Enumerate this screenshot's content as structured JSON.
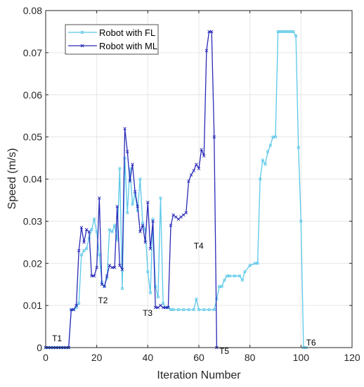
{
  "chart_data": {
    "type": "line",
    "xlabel": "Iteration Number",
    "ylabel": "Speed (m/s)",
    "xlim": [
      0,
      120
    ],
    "ylim": [
      0,
      0.08
    ],
    "xticks": [
      "0",
      "20",
      "40",
      "60",
      "80",
      "100",
      "120"
    ],
    "yticks": [
      "0",
      "0.01",
      "0.02",
      "0.03",
      "0.04",
      "0.05",
      "0.06",
      "0.07",
      "0.08"
    ],
    "grid": true,
    "legend_position": "top-left",
    "annotations": [
      {
        "text": "T1",
        "x": 2.5,
        "y": 0.0015
      },
      {
        "text": "T2",
        "x": 20.5,
        "y": 0.0105
      },
      {
        "text": "T3",
        "x": 38,
        "y": 0.0075
      },
      {
        "text": "T4",
        "x": 58,
        "y": 0.0235
      },
      {
        "text": "T5",
        "x": 68,
        "y": -0.0015
      },
      {
        "text": "T6",
        "x": 102,
        "y": 0.0005
      }
    ],
    "series": [
      {
        "name": "Robot with FL",
        "color": "#5bc8e8",
        "marker": "square",
        "points": [
          [
            0,
            0
          ],
          [
            1,
            0
          ],
          [
            2,
            0
          ],
          [
            3,
            0
          ],
          [
            4,
            0
          ],
          [
            5,
            0
          ],
          [
            6,
            0
          ],
          [
            7,
            0
          ],
          [
            8,
            0
          ],
          [
            9,
            0
          ],
          [
            10,
            0.009
          ],
          [
            11,
            0.009
          ],
          [
            12,
            0.0095
          ],
          [
            13,
            0.0105
          ],
          [
            14,
            0.022
          ],
          [
            15,
            0.023
          ],
          [
            16,
            0.0235
          ],
          [
            17,
            0.026
          ],
          [
            18,
            0.028
          ],
          [
            19,
            0.0305
          ],
          [
            20,
            0.0275
          ],
          [
            21,
            0.022
          ],
          [
            22,
            0.0155
          ],
          [
            23,
            0.0145
          ],
          [
            24,
            0.0165
          ],
          [
            25,
            0.028
          ],
          [
            26,
            0.0275
          ],
          [
            27,
            0.029
          ],
          [
            28,
            0.0255
          ],
          [
            29,
            0.0425
          ],
          [
            30,
            0.014
          ],
          [
            31,
            0.045
          ],
          [
            32,
            0.032
          ],
          [
            33,
            0.0425
          ],
          [
            34,
            0.034
          ],
          [
            35,
            0.0365
          ],
          [
            36,
            0.0325
          ],
          [
            37,
            0.04
          ],
          [
            38,
            0.0295
          ],
          [
            39,
            0.028
          ],
          [
            40,
            0.018
          ],
          [
            41,
            0.013
          ],
          [
            42,
            0.0305
          ],
          [
            43,
            0.0145
          ],
          [
            44,
            0.012
          ],
          [
            45,
            0.0355
          ],
          [
            46,
            0.0105
          ],
          [
            47,
            0.0095
          ],
          [
            48,
            0.0095
          ],
          [
            49,
            0.009
          ],
          [
            50,
            0.009
          ],
          [
            52,
            0.009
          ],
          [
            54,
            0.009
          ],
          [
            56,
            0.009
          ],
          [
            58,
            0.009
          ],
          [
            59,
            0.0115
          ],
          [
            60,
            0.009
          ],
          [
            62,
            0.009
          ],
          [
            64,
            0.009
          ],
          [
            66,
            0.009
          ],
          [
            67,
            0.0115
          ],
          [
            68,
            0.0145
          ],
          [
            69,
            0.0145
          ],
          [
            70,
            0.016
          ],
          [
            71,
            0.017
          ],
          [
            72,
            0.017
          ],
          [
            74,
            0.017
          ],
          [
            76,
            0.017
          ],
          [
            77,
            0.016
          ],
          [
            78,
            0.018
          ],
          [
            80,
            0.0195
          ],
          [
            82,
            0.02
          ],
          [
            83,
            0.02
          ],
          [
            84,
            0.04
          ],
          [
            85,
            0.0445
          ],
          [
            86,
            0.0435
          ],
          [
            87,
            0.0465
          ],
          [
            88,
            0.048
          ],
          [
            89,
            0.05
          ],
          [
            90,
            0.05
          ],
          [
            91,
            0.075
          ],
          [
            92,
            0.075
          ],
          [
            93,
            0.075
          ],
          [
            94,
            0.075
          ],
          [
            95,
            0.075
          ],
          [
            96,
            0.075
          ],
          [
            97,
            0.075
          ],
          [
            98,
            0.074
          ],
          [
            99,
            0.0475
          ],
          [
            100,
            0.03
          ],
          [
            101,
            0
          ],
          [
            102,
            0
          ]
        ]
      },
      {
        "name": "Robot with ML",
        "color": "#2a2ab8",
        "marker": "x",
        "points": [
          [
            0,
            0
          ],
          [
            1,
            0
          ],
          [
            2,
            0
          ],
          [
            3,
            0
          ],
          [
            4,
            0
          ],
          [
            5,
            0
          ],
          [
            6,
            0
          ],
          [
            7,
            0
          ],
          [
            8,
            0
          ],
          [
            9,
            0
          ],
          [
            10,
            0.009
          ],
          [
            11,
            0.009
          ],
          [
            12,
            0.01
          ],
          [
            13,
            0.023
          ],
          [
            14,
            0.0285
          ],
          [
            15,
            0.025
          ],
          [
            16,
            0.028
          ],
          [
            17,
            0.0275
          ],
          [
            18,
            0.017
          ],
          [
            19,
            0.017
          ],
          [
            20,
            0.019
          ],
          [
            21,
            0.0355
          ],
          [
            22,
            0.015
          ],
          [
            23,
            0.0145
          ],
          [
            24,
            0.017
          ],
          [
            25,
            0.0195
          ],
          [
            26,
            0.019
          ],
          [
            27,
            0.019
          ],
          [
            28,
            0.0335
          ],
          [
            29,
            0.0195
          ],
          [
            30,
            0.0185
          ],
          [
            31,
            0.052
          ],
          [
            32,
            0.0465
          ],
          [
            33,
            0.0395
          ],
          [
            34,
            0.0435
          ],
          [
            35,
            0.037
          ],
          [
            36,
            0.0335
          ],
          [
            37,
            0.0275
          ],
          [
            38,
            0.029
          ],
          [
            39,
            0.025
          ],
          [
            40,
            0.0345
          ],
          [
            41,
            0.0235
          ],
          [
            42,
            0.03
          ],
          [
            43,
            0.0095
          ],
          [
            44,
            0.0095
          ],
          [
            45,
            0.01
          ],
          [
            46,
            0.0095
          ],
          [
            47,
            0.0095
          ],
          [
            48,
            0.0095
          ],
          [
            49,
            0.029
          ],
          [
            50,
            0.0315
          ],
          [
            51,
            0.031
          ],
          [
            52,
            0.0305
          ],
          [
            53,
            0.031
          ],
          [
            54,
            0.0315
          ],
          [
            55,
            0.032
          ],
          [
            56,
            0.0395
          ],
          [
            57,
            0.041
          ],
          [
            58,
            0.042
          ],
          [
            59,
            0.0435
          ],
          [
            60,
            0.0425
          ],
          [
            61,
            0.047
          ],
          [
            62,
            0.0455
          ],
          [
            63,
            0.0705
          ],
          [
            64,
            0.075
          ],
          [
            65,
            0.075
          ],
          [
            66,
            0.05
          ],
          [
            67,
            0
          ]
        ]
      }
    ]
  }
}
